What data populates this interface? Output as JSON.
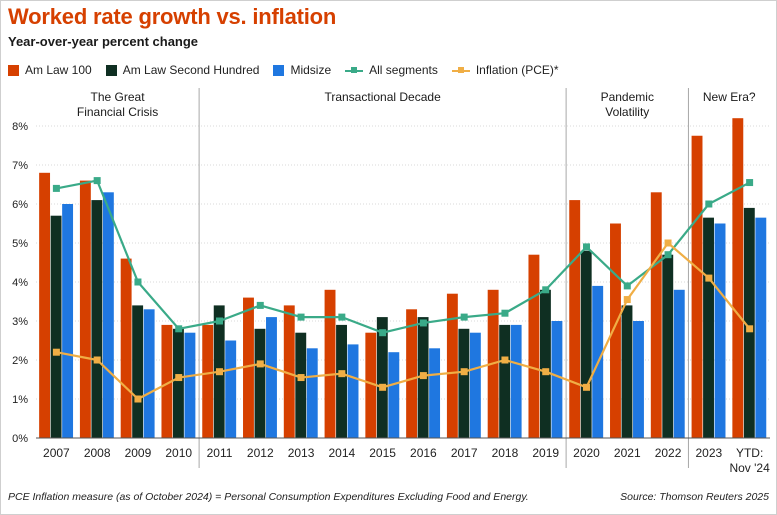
{
  "title": "Worked rate growth vs. inflation",
  "subtitle": "Year-over-year percent change",
  "footnote": "PCE Inflation measure (as of October 2024) =  Personal Consumption Expenditures Excluding Food and Energy.",
  "source": "Source: Thomson Reuters 2025",
  "colors": {
    "am_law_100": "#d64000",
    "am_law_second_hundred": "#0f2f22",
    "midsize": "#1f77e0",
    "all_segments": "#3aaa88",
    "inflation": "#f0ae45"
  },
  "chart_data": {
    "type": "bar",
    "title": "Worked rate growth vs. inflation",
    "ylabel": "Year-over-year percent change",
    "ylim": [
      0,
      8.5
    ],
    "yticks": [
      0,
      1,
      2,
      3,
      4,
      5,
      6,
      7,
      8
    ],
    "ytick_labels": [
      "0%",
      "1%",
      "2%",
      "3%",
      "4%",
      "5%",
      "6%",
      "7%",
      "8%"
    ],
    "categories": [
      "2007",
      "2008",
      "2009",
      "2010",
      "2011",
      "2012",
      "2013",
      "2014",
      "2015",
      "2016",
      "2017",
      "2018",
      "2019",
      "2020",
      "2021",
      "2022",
      "2023",
      "YTD:"
    ],
    "category_sublabels": [
      "",
      "",
      "",
      "",
      "",
      "",
      "",
      "",
      "",
      "",
      "",
      "",
      "",
      "",
      "",
      "",
      "",
      "Nov '24"
    ],
    "bar_series": [
      {
        "name": "Am Law 100",
        "color_key": "am_law_100",
        "values": [
          6.8,
          6.6,
          4.6,
          2.9,
          2.9,
          3.6,
          3.4,
          3.8,
          2.7,
          3.3,
          3.7,
          3.8,
          4.7,
          6.1,
          5.5,
          6.3,
          7.75,
          8.2
        ]
      },
      {
        "name": "Am Law Second Hundred",
        "color_key": "am_law_second_hundred",
        "values": [
          5.7,
          6.1,
          3.4,
          2.8,
          3.4,
          2.8,
          2.7,
          2.9,
          3.1,
          3.1,
          2.8,
          2.9,
          3.8,
          4.8,
          3.4,
          4.7,
          5.65,
          5.9
        ]
      },
      {
        "name": "Midsize",
        "color_key": "midsize",
        "values": [
          6.0,
          6.3,
          3.3,
          2.7,
          2.5,
          3.1,
          2.3,
          2.4,
          2.2,
          2.3,
          2.7,
          2.9,
          3.0,
          3.9,
          3.0,
          3.8,
          5.5,
          5.65
        ]
      }
    ],
    "line_series": [
      {
        "name": "All segments",
        "color_key": "all_segments",
        "values": [
          6.4,
          6.6,
          4.0,
          2.8,
          3.0,
          3.4,
          3.1,
          3.1,
          2.7,
          2.95,
          3.1,
          3.2,
          3.8,
          4.9,
          3.9,
          4.7,
          6.0,
          6.55
        ]
      },
      {
        "name": "Inflation (PCE)*",
        "color_key": "inflation",
        "values": [
          2.2,
          2.0,
          1.0,
          1.55,
          1.7,
          1.9,
          1.55,
          1.65,
          1.3,
          1.6,
          1.7,
          2.0,
          1.7,
          1.3,
          3.55,
          5.0,
          4.1,
          2.8
        ]
      }
    ],
    "eras": [
      {
        "label_lines": [
          "The Great",
          "Financial Crisis"
        ],
        "start_index": 0,
        "end_index": 3
      },
      {
        "label_lines": [
          "Transactional Decade"
        ],
        "start_index": 4,
        "end_index": 12
      },
      {
        "label_lines": [
          "Pandemic",
          "Volatility"
        ],
        "start_index": 13,
        "end_index": 15
      },
      {
        "label_lines": [
          "New Era?"
        ],
        "start_index": 16,
        "end_index": 17
      }
    ],
    "legend": [
      "Am Law 100",
      "Am Law Second Hundred",
      "Midsize",
      "All segments",
      "Inflation (PCE)*"
    ],
    "legend_position": "top-left",
    "grid": true
  }
}
